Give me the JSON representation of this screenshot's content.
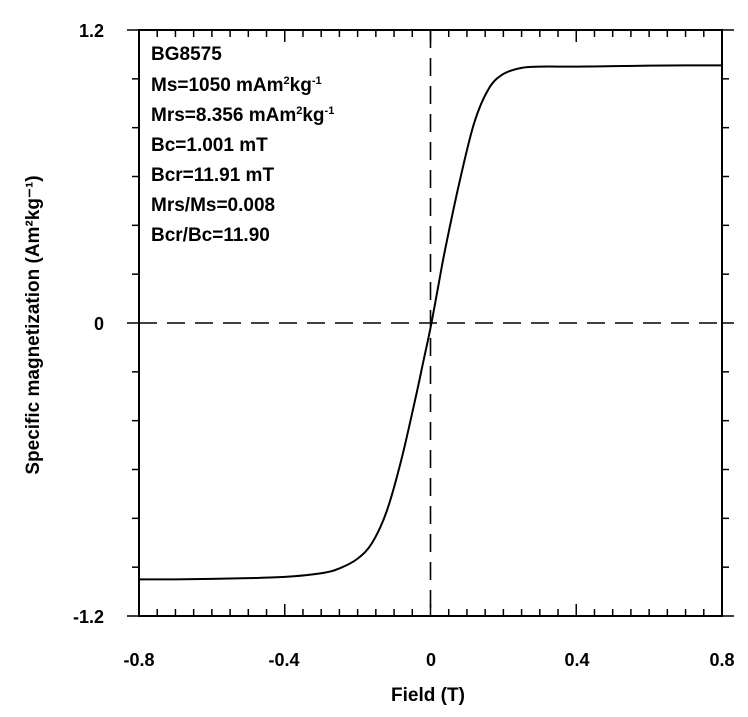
{
  "chart_data": {
    "type": "line",
    "title": "",
    "xlabel": "Field (T)",
    "ylabel": "Specific magnetization (Am²kg⁻¹)",
    "xlim": [
      -0.8,
      0.8
    ],
    "ylim": [
      -1.2,
      1.2
    ],
    "x_ticks": [
      "-0.8",
      "-0.4",
      "0",
      "0.4",
      "0.8"
    ],
    "y_ticks": [
      "1.2",
      "0",
      "-1.2"
    ],
    "grid": false,
    "reference_lines": [
      {
        "axis": "x",
        "value": 0,
        "style": "dashed"
      },
      {
        "axis": "y",
        "value": 0,
        "style": "dashed"
      }
    ],
    "annotations": {
      "sample": "BG8575",
      "ms": {
        "prefix": "Ms=1050 mAm",
        "sup1": "2",
        "mid": "kg",
        "sup2": "-1"
      },
      "mrs": {
        "prefix": "Mrs=8.356 mAm",
        "sup1": "2",
        "mid": "kg",
        "sup2": "-1"
      },
      "bc": "Bc=1.001 mT",
      "bcr": "Bcr=11.91 mT",
      "mrs_ms": "Mrs/Ms=0.008",
      "bcr_bc": "Bcr/Bc=11.90"
    },
    "series": [
      {
        "x": [
          -0.8,
          -0.7,
          -0.6,
          -0.5,
          -0.4,
          -0.3,
          -0.25,
          -0.2,
          -0.16,
          -0.12,
          -0.08,
          -0.04,
          -0.02,
          0,
          0.02,
          0.04,
          0.08,
          0.12,
          0.16,
          0.2,
          0.25,
          0.3,
          0.4,
          0.5,
          0.6,
          0.7,
          0.8
        ],
        "y": [
          -1.05,
          -1.05,
          -1.048,
          -1.045,
          -1.04,
          -1.025,
          -1.005,
          -0.965,
          -0.9,
          -0.77,
          -0.56,
          -0.3,
          -0.16,
          -0.02,
          0.14,
          0.3,
          0.58,
          0.82,
          0.96,
          1.02,
          1.045,
          1.05,
          1.05,
          1.052,
          1.054,
          1.055,
          1.055
        ]
      }
    ]
  }
}
